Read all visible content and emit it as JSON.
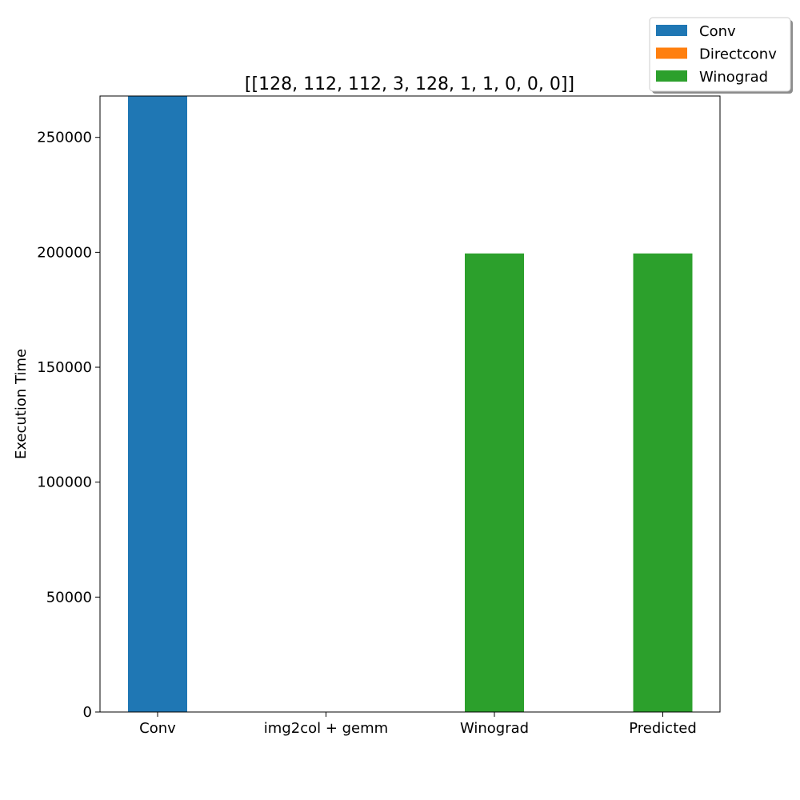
{
  "chart_data": {
    "type": "bar",
    "title": "[[128, 112, 112, 3, 128, 1, 1, 0, 0, 0]]",
    "xlabel": "",
    "ylabel": "Execution Time",
    "categories": [
      "Conv",
      "img2col + gemm",
      "Winograd",
      "Predicted"
    ],
    "ylim": [
      0,
      268000
    ],
    "yticks": [
      0,
      50000,
      100000,
      150000,
      200000,
      250000
    ],
    "grid": false,
    "legend_position": "top-right",
    "bars": [
      {
        "category": "Conv",
        "value": 268000,
        "series": "Conv"
      },
      {
        "category": "img2col + gemm",
        "value": 0,
        "series": "Directconv"
      },
      {
        "category": "Winograd",
        "value": 199500,
        "series": "Winograd"
      },
      {
        "category": "Predicted",
        "value": 199500,
        "series": "Winograd"
      }
    ],
    "series": [
      {
        "name": "Conv",
        "color": "#1f77b4"
      },
      {
        "name": "Directconv",
        "color": "#ff7f0e"
      },
      {
        "name": "Winograd",
        "color": "#2ca02c"
      }
    ]
  }
}
